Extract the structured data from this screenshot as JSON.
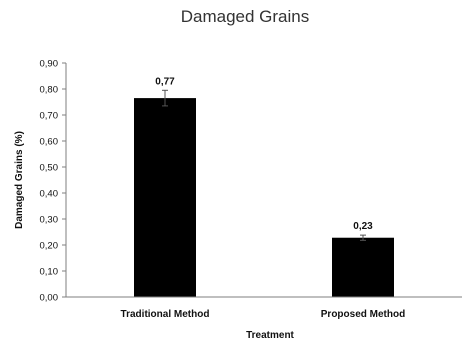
{
  "chart_data": {
    "type": "bar",
    "title": "Damaged Grains",
    "xlabel": "Treatment",
    "ylabel": "Damaged Grains (%)",
    "categories": [
      "Traditional Method",
      "Proposed Method"
    ],
    "values": [
      0.765,
      0.228
    ],
    "data_labels": [
      "0,77",
      "0,23"
    ],
    "error": [
      0.03,
      0.01
    ],
    "ylim": [
      0,
      0.9
    ],
    "yticks": [
      0,
      0.1,
      0.2,
      0.3,
      0.4,
      0.5,
      0.6,
      0.7,
      0.8,
      0.9
    ],
    "ytick_labels": [
      "0,00",
      "0,10",
      "0,20",
      "0,30",
      "0,40",
      "0,50",
      "0,60",
      "0,70",
      "0,80",
      "0,90"
    ],
    "grid": false,
    "legend": "none",
    "bar_color": "#000000"
  }
}
